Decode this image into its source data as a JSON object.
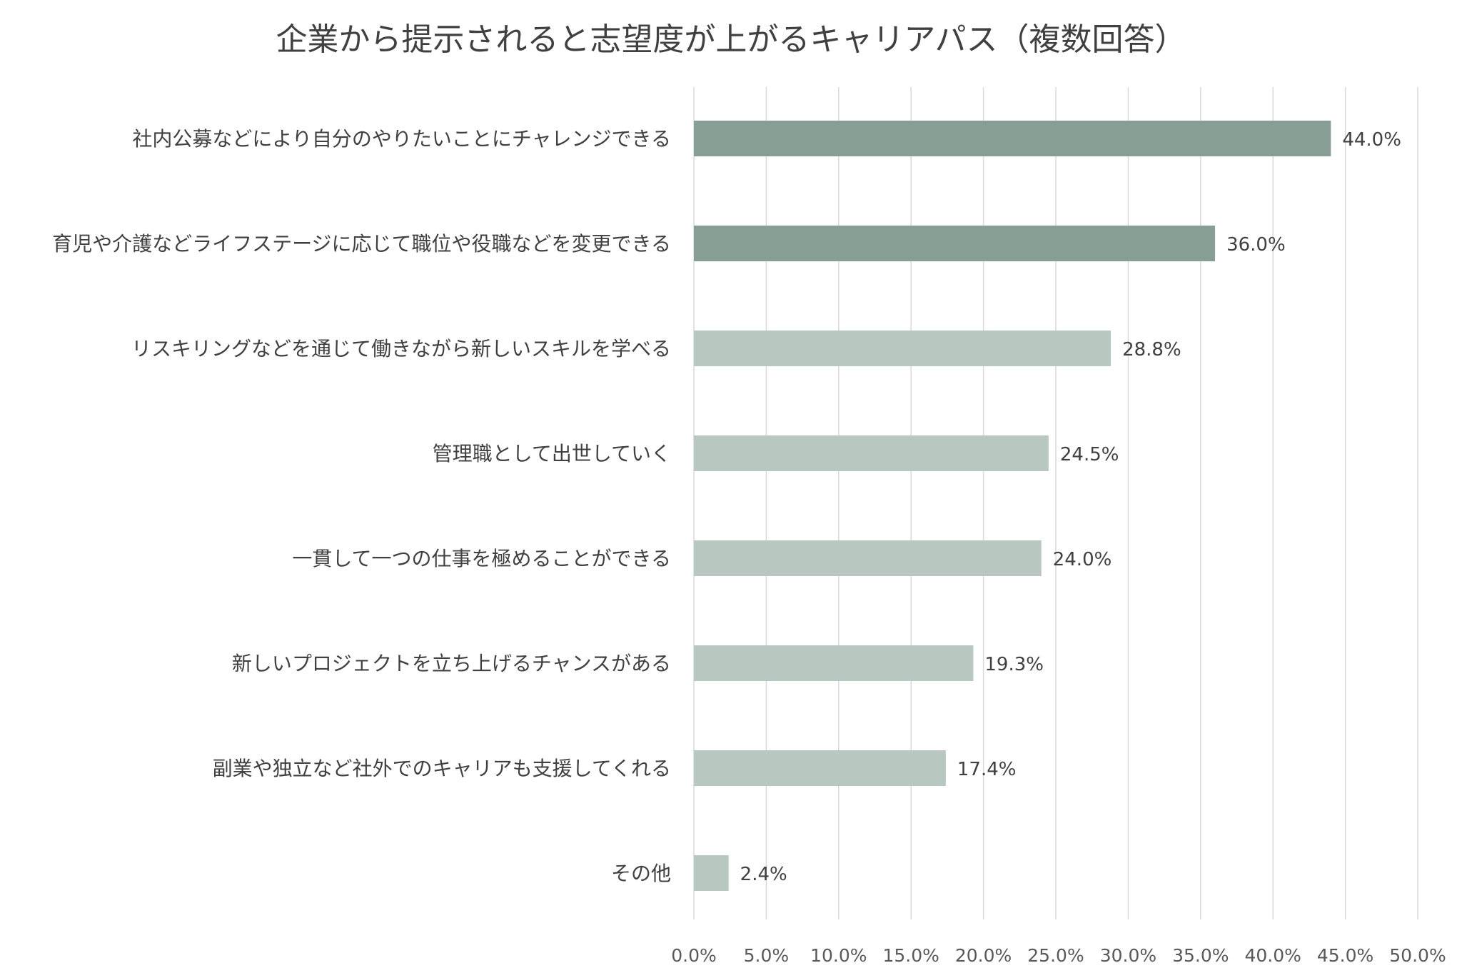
{
  "chart_data": {
    "type": "bar",
    "orientation": "horizontal",
    "title": "企業から提示されると志望度が上がるキャリアパス（複数回答）",
    "xlabel": "",
    "ylabel": "",
    "xlim": [
      0,
      50
    ],
    "x_ticks": [
      0,
      5,
      10,
      15,
      20,
      25,
      30,
      35,
      40,
      45,
      50
    ],
    "x_tick_labels": [
      "0.0%",
      "5.0%",
      "10.0%",
      "15.0%",
      "20.0%",
      "25.0%",
      "30.0%",
      "35.0%",
      "40.0%",
      "45.0%",
      "50.0%"
    ],
    "grid": true,
    "legend": "none",
    "categories": [
      "社内公募などにより自分のやりたいことにチャレンジできる",
      "育児や介護などライフステージに応じて職位や役職などを変更できる",
      "リスキリングなどを通じて働きながら新しいスキルを学べる",
      "管理職として出世していく",
      "一貫して一つの仕事を極めることができる",
      "新しいプロジェクトを立ち上げるチャンスがある",
      "副業や独立など社外でのキャリアも支援してくれる",
      "その他"
    ],
    "values": [
      44.0,
      36.0,
      28.8,
      24.5,
      24.0,
      19.3,
      17.4,
      2.4
    ],
    "data_labels": [
      "44.0%",
      "36.0%",
      "28.8%",
      "24.5%",
      "24.0%",
      "19.3%",
      "17.4%",
      "2.4%"
    ],
    "colors": {
      "highlight": "#879e94",
      "normal": "#b8c7bf",
      "grid": "#d9d9d9",
      "text": "#404040"
    },
    "highlight_count": 2
  }
}
